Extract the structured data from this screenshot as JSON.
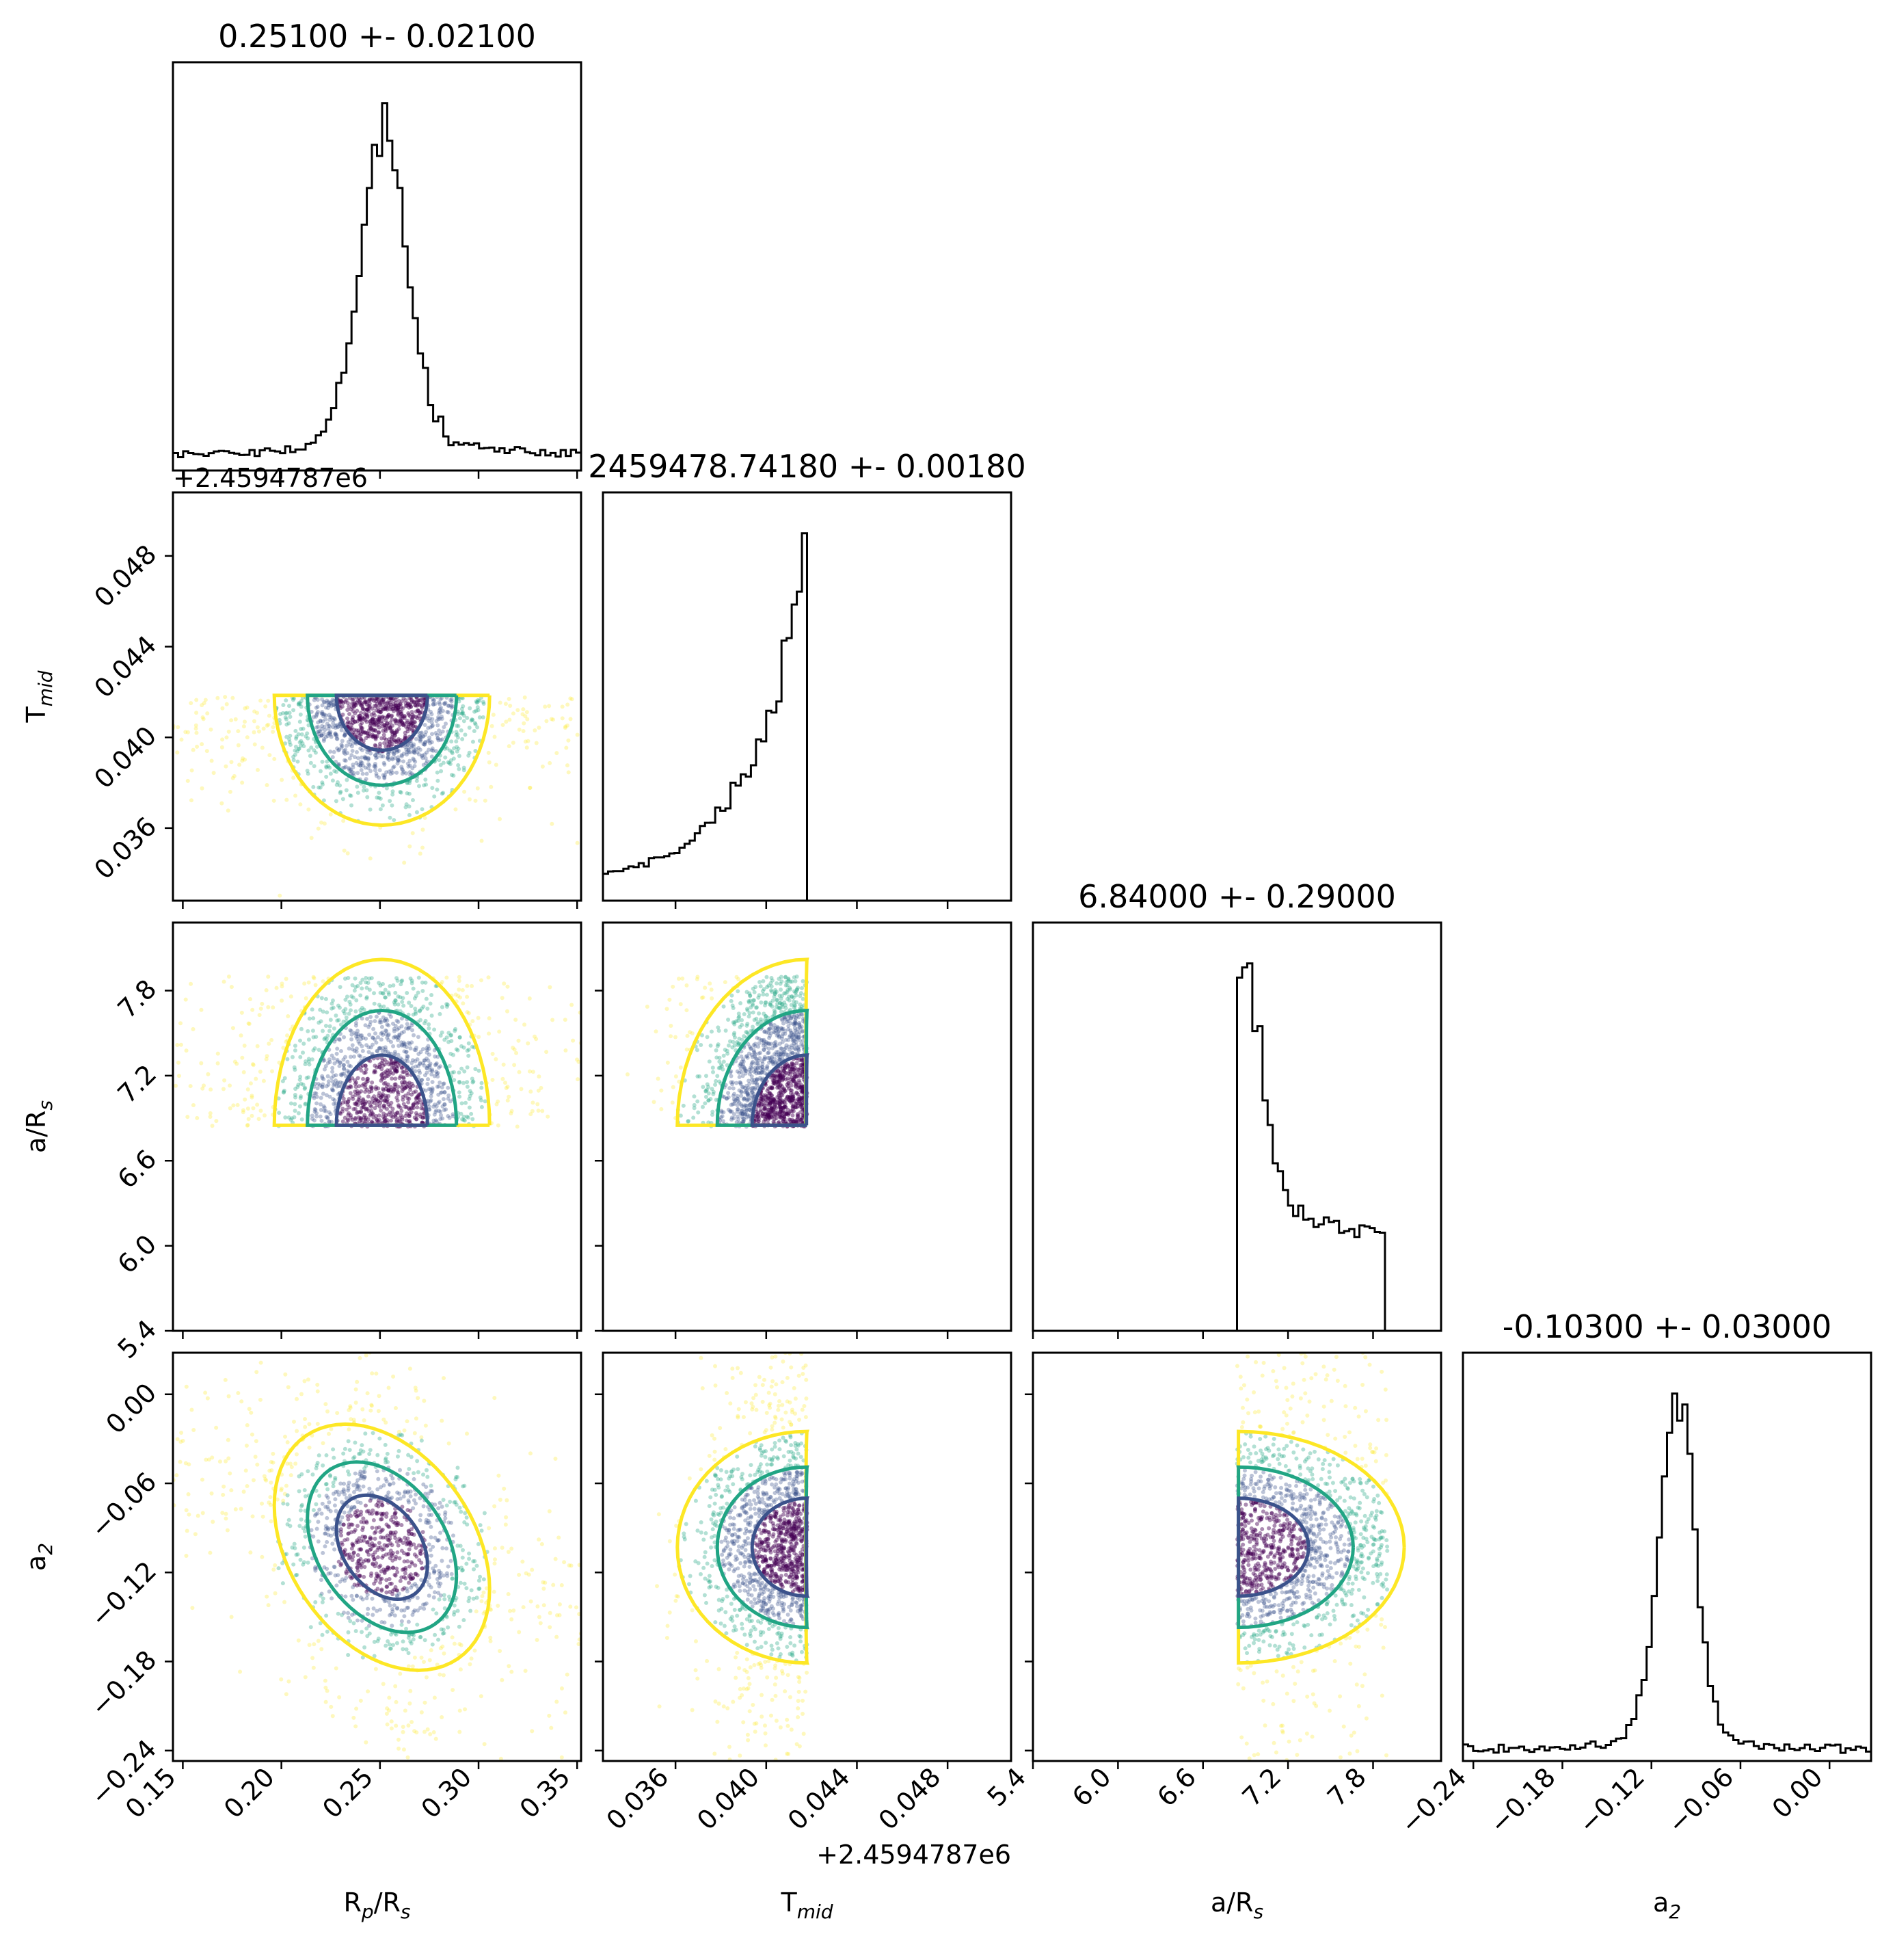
{
  "colors": {
    "yellow": "#fde725",
    "green": "#21a584",
    "blue": "#3b528b",
    "purple": "#440154"
  },
  "chart_data": {
    "type": "corner",
    "parameters": [
      {
        "key": "rp",
        "label": "R$_p$/R$_s$",
        "title": "0.25100 +- 0.02100",
        "range": [
          0.145,
          0.352
        ],
        "ticks": [
          0.15,
          0.2,
          0.25,
          0.3,
          0.35
        ],
        "ticklabels": [
          "0.15",
          "0.20",
          "0.25",
          "0.30",
          "0.35"
        ],
        "median": 0.251,
        "sigma": 0.021
      },
      {
        "key": "tmid",
        "label": "T$_{mid}$",
        "title": "2459478.74180 +- 0.00180",
        "offset": "+2.4594787e6",
        "range": [
          0.0328,
          0.0508
        ],
        "ticks": [
          0.036,
          0.04,
          0.044,
          0.048
        ],
        "ticklabels": [
          "0.036",
          "0.040",
          "0.044",
          "0.048"
        ],
        "median": 0.0418,
        "sigma": 0.0018,
        "upper_cut": 0.0418
      },
      {
        "key": "ars",
        "label": "a/R$_s$",
        "title": "6.84000 +- 0.29000",
        "range": [
          5.4,
          8.28
        ],
        "ticks": [
          5.4,
          6.0,
          6.6,
          7.2,
          7.8
        ],
        "ticklabels": [
          "5.4",
          "6.0",
          "6.6",
          "7.2",
          "7.8"
        ],
        "median": 6.84,
        "sigma": 0.29,
        "lower_cut": 6.84,
        "upper_cut": 7.9
      },
      {
        "key": "a2",
        "label": "a$_2$",
        "title": "-0.10300 +- 0.03000",
        "range": [
          -0.247,
          0.028
        ],
        "ticks": [
          -0.24,
          -0.18,
          -0.12,
          -0.06,
          0.0
        ],
        "ticklabels": [
          "−0.24",
          "−0.18",
          "−0.12",
          "−0.06",
          "0.00"
        ],
        "median": -0.103,
        "sigma": 0.03
      }
    ],
    "histograms": [
      {
        "param": "rp",
        "bins": 80,
        "peak_center": 0.252,
        "peak_width": 0.012,
        "floor": 0.06
      },
      {
        "param": "tmid",
        "bins": 80,
        "peak_center": 0.0417,
        "peak_width": 0.0025
      },
      {
        "param": "ars",
        "bins": 80,
        "peak_center": 6.9,
        "peak_width": 0.12,
        "plateau": 0.3
      },
      {
        "param": "a2",
        "bins": 80,
        "peak_center": -0.103,
        "peak_width": 0.012,
        "floor": 0.04
      }
    ],
    "contour_levels": [
      "yellow",
      "green",
      "blue"
    ],
    "grid": false
  }
}
